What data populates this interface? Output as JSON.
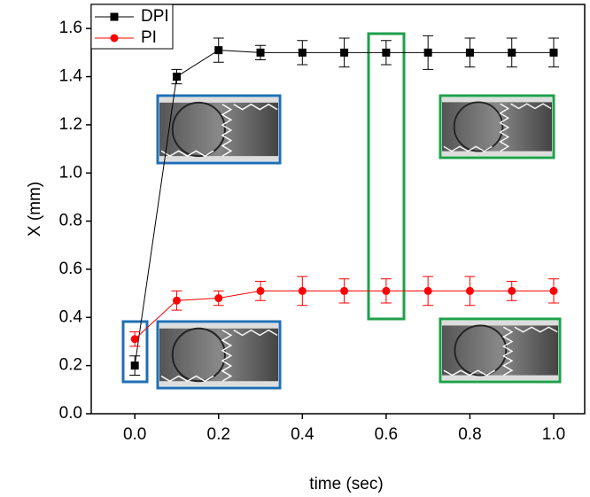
{
  "chart_data": {
    "type": "line",
    "x_label": "time (sec)",
    "y_label": "X (mm)",
    "x": [
      0,
      0.1,
      0.2,
      0.3,
      0.4,
      0.5,
      0.6,
      0.7,
      0.8,
      0.9,
      1.0
    ],
    "series": [
      {
        "name": "DPI",
        "color": "#000000",
        "marker": "square",
        "values": [
          0.2,
          1.4,
          1.51,
          1.5,
          1.5,
          1.5,
          1.5,
          1.5,
          1.5,
          1.5,
          1.5
        ],
        "errors": [
          0.04,
          0.03,
          0.05,
          0.03,
          0.05,
          0.06,
          0.05,
          0.07,
          0.06,
          0.06,
          0.06
        ]
      },
      {
        "name": "PI",
        "color": "#ff0000",
        "marker": "circle",
        "values": [
          0.31,
          0.47,
          0.48,
          0.51,
          0.51,
          0.51,
          0.51,
          0.51,
          0.51,
          0.51,
          0.51
        ],
        "errors": [
          0.03,
          0.04,
          0.03,
          0.04,
          0.06,
          0.05,
          0.05,
          0.06,
          0.06,
          0.04,
          0.05
        ]
      }
    ],
    "xlim": [
      -0.104,
      1.074
    ],
    "ylim": [
      0,
      1.7
    ],
    "xticks": [
      {
        "value": 0,
        "label": "0.0"
      },
      0.2,
      0.4,
      0.6,
      0.8,
      {
        "value": 1,
        "label": "1.0"
      }
    ],
    "yticks": [
      {
        "value": 0,
        "label": "0.0"
      },
      0.2,
      0.4,
      0.6,
      0.8,
      {
        "value": 1,
        "label": "1.0"
      },
      1.2,
      1.4,
      1.6
    ],
    "legend": "top-left"
  }
}
